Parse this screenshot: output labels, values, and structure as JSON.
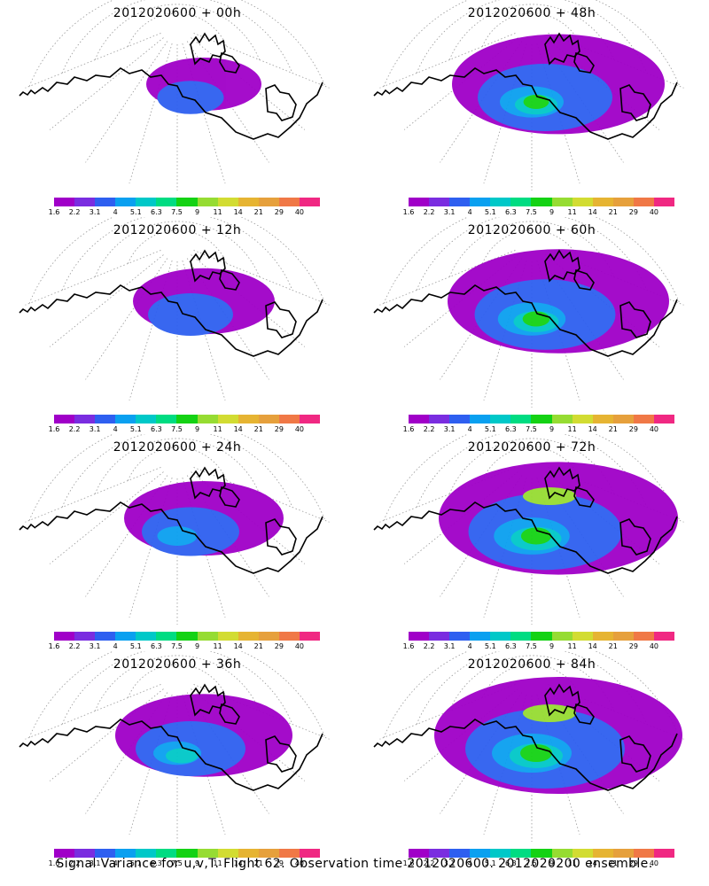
{
  "panels": [
    {
      "title": "2012020600  + 00h",
      "spread": 0.25
    },
    {
      "title": "2012020600  + 48h",
      "spread": 0.8
    },
    {
      "title": "2012020600  + 12h",
      "spread": 0.4
    },
    {
      "title": "2012020600  + 60h",
      "spread": 0.85
    },
    {
      "title": "2012020600  + 24h",
      "spread": 0.5
    },
    {
      "title": "2012020600  + 72h",
      "spread": 0.95
    },
    {
      "title": "2012020600  + 36h",
      "spread": 0.6
    },
    {
      "title": "2012020600  + 84h",
      "spread": 1.0
    }
  ],
  "colorbar": {
    "labels": [
      "1.6",
      "2.2",
      "3.1",
      "4",
      "5.1",
      "6.3",
      "7.5",
      "9",
      "11",
      "14",
      "21",
      "29",
      "40"
    ],
    "colors": [
      "#a000c8",
      "#7a2de0",
      "#2e5ff0",
      "#0aa0f0",
      "#00c8c8",
      "#00dc82",
      "#14d214",
      "#96dc32",
      "#d2dc32",
      "#e6b432",
      "#e6a03c",
      "#f07846",
      "#f02882"
    ]
  },
  "footer": "Signal Variance for u,v,T. Flight 62. Observation time 2012020600. 2012020200 ensemble."
}
